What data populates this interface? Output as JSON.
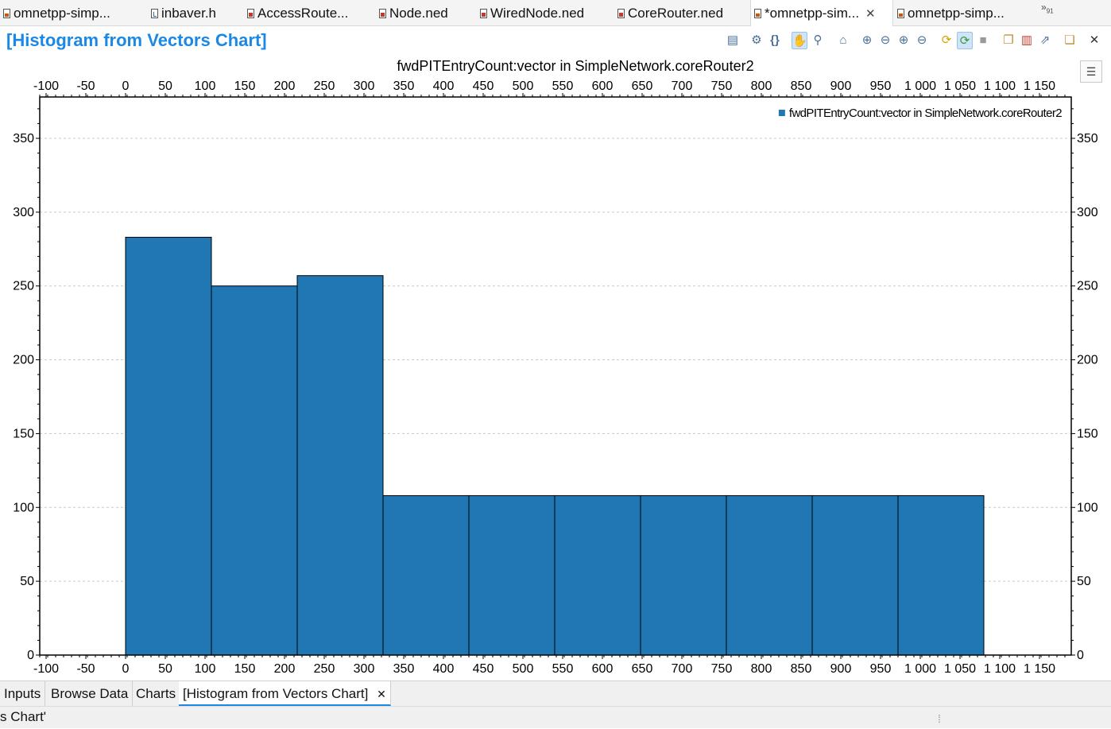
{
  "editor_tabs": [
    {
      "label": "omnetpp-simp...",
      "icon": "anf-file-icon",
      "active": false
    },
    {
      "label": "inbaver.h",
      "icon": "header-file-icon",
      "active": false
    },
    {
      "label": "AccessRoute...",
      "icon": "ned-file-icon",
      "active": false
    },
    {
      "label": "Node.ned",
      "icon": "ned-file-icon",
      "active": false
    },
    {
      "label": "WiredNode.ned",
      "icon": "ned-file-icon",
      "active": false
    },
    {
      "label": "CoreRouter.ned",
      "icon": "ned-file-icon",
      "active": false
    },
    {
      "label": "*omnetpp-sim...",
      "icon": "anf-file-icon",
      "active": true
    },
    {
      "label": "omnetpp-simp...",
      "icon": "anf-file-icon",
      "active": false
    }
  ],
  "overflow": {
    "glyph": "»",
    "count": "91"
  },
  "editor": {
    "title": "[Histogram from Vectors Chart]"
  },
  "toolbar_icons": [
    "save-icon",
    "settings-icon",
    "braces-icon",
    "hand-pan-icon",
    "zoom-icon",
    "home-icon",
    "zoom-in-horizontal-icon",
    "zoom-out-horizontal-icon",
    "zoom-in-vertical-icon",
    "zoom-out-vertical-icon",
    "refresh-icon",
    "refresh-auto-icon",
    "stop-icon",
    "copy-icon",
    "export-chart-icon",
    "export-image-icon",
    "new-chart-icon",
    "close-icon"
  ],
  "chart_data": {
    "type": "bar",
    "title": "fwdPITEntryCount:vector in SimpleNetwork.coreRouter2",
    "legend": {
      "entries": [
        "fwdPITEntryCount:vector in SimpleNetwork.coreRouter2"
      ],
      "position": "top-right"
    },
    "series": [
      {
        "name": "fwdPITEntryCount:vector in SimpleNetwork.coreRouter2",
        "color": "#2077b4",
        "bins": [
          {
            "from": 0,
            "to": 108,
            "value": 283
          },
          {
            "from": 108,
            "to": 216,
            "value": 250
          },
          {
            "from": 216,
            "to": 324,
            "value": 257
          },
          {
            "from": 324,
            "to": 432,
            "value": 108
          },
          {
            "from": 432,
            "to": 540,
            "value": 108
          },
          {
            "from": 540,
            "to": 648,
            "value": 108
          },
          {
            "from": 648,
            "to": 756,
            "value": 108
          },
          {
            "from": 756,
            "to": 864,
            "value": 108
          },
          {
            "from": 864,
            "to": 972,
            "value": 108
          },
          {
            "from": 972,
            "to": 1080,
            "value": 108
          }
        ]
      }
    ],
    "xlim": [
      -108,
      1190
    ],
    "ylim": [
      0,
      378
    ],
    "x_ticks": [
      "-100",
      "-50",
      "0",
      "50",
      "100",
      "150",
      "200",
      "250",
      "300",
      "350",
      "400",
      "450",
      "500",
      "550",
      "600",
      "650",
      "700",
      "750",
      "800",
      "850",
      "900",
      "950",
      "1 000",
      "1 050",
      "1 100",
      "1 150"
    ],
    "x_tick_values": [
      -100,
      -50,
      0,
      50,
      100,
      150,
      200,
      250,
      300,
      350,
      400,
      450,
      500,
      550,
      600,
      650,
      700,
      750,
      800,
      850,
      900,
      950,
      1000,
      1050,
      1100,
      1150
    ],
    "y_ticks": [
      "0",
      "50",
      "100",
      "150",
      "200",
      "250",
      "300",
      "350"
    ],
    "y_tick_values": [
      0,
      50,
      100,
      150,
      200,
      250,
      300,
      350
    ],
    "grid": true
  },
  "page_tabs": [
    {
      "label": "Inputs",
      "active": false
    },
    {
      "label": "Browse Data",
      "active": false
    },
    {
      "label": "Charts",
      "active": false
    },
    {
      "label": "[Histogram from Vectors Chart]",
      "active": true
    }
  ],
  "status": {
    "text": "s Chart'"
  }
}
